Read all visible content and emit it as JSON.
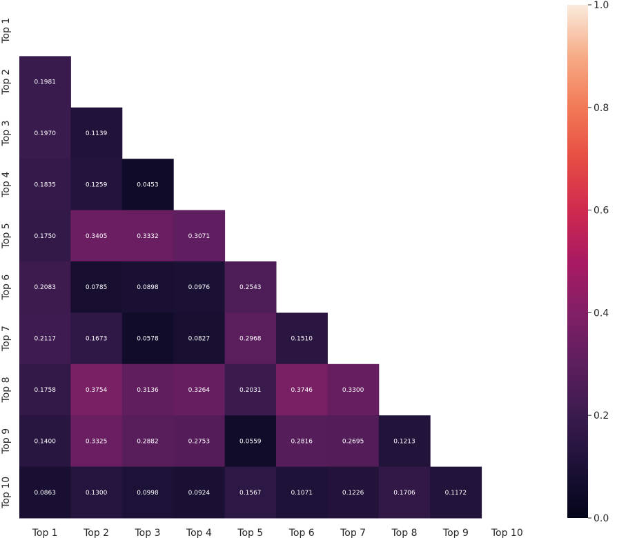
{
  "chart_data": {
    "type": "heatmap",
    "title": "",
    "xlabel": "",
    "ylabel": "",
    "x_categories": [
      "Top 1",
      "Top 2",
      "Top 3",
      "Top 4",
      "Top 5",
      "Top 6",
      "Top 7",
      "Top 8",
      "Top 9",
      "Top 10"
    ],
    "y_categories": [
      "Top 1",
      "Top 2",
      "Top 3",
      "Top 4",
      "Top 5",
      "Top 6",
      "Top 7",
      "Top 8",
      "Top 9",
      "Top 10"
    ],
    "mask": "upper-triangle-including-diagonal",
    "values": [
      [],
      [
        0.1981
      ],
      [
        0.197,
        0.1139
      ],
      [
        0.1835,
        0.1259,
        0.0453
      ],
      [
        0.175,
        0.3405,
        0.3332,
        0.3071
      ],
      [
        0.2083,
        0.0785,
        0.0898,
        0.0976,
        0.2543
      ],
      [
        0.2117,
        0.1673,
        0.0578,
        0.0827,
        0.2968,
        0.151
      ],
      [
        0.1758,
        0.3754,
        0.3136,
        0.3264,
        0.2031,
        0.3746,
        0.33
      ],
      [
        0.14,
        0.3325,
        0.2882,
        0.2753,
        0.0559,
        0.2816,
        0.2695,
        0.1213
      ],
      [
        0.0863,
        0.13,
        0.0998,
        0.0924,
        0.1567,
        0.1071,
        0.1226,
        0.1706,
        0.1172
      ]
    ],
    "value_format": "4-decimal",
    "colorbar": {
      "range": [
        0.0,
        1.0
      ],
      "ticks": [
        "0.0",
        "0.2",
        "0.4",
        "0.6",
        "0.8",
        "1.0"
      ],
      "colormap": "rocket"
    },
    "grid": false
  }
}
